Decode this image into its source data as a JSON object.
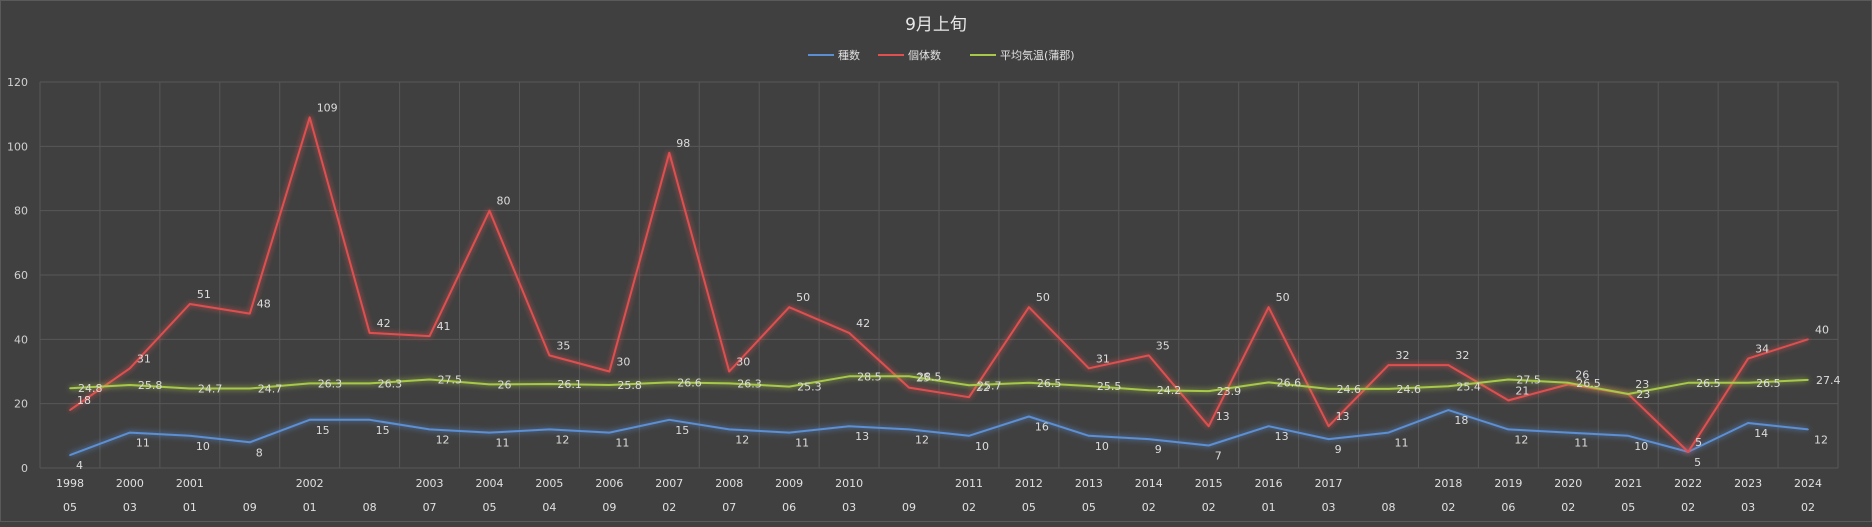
{
  "chart_data": {
    "type": "line",
    "title": "9月上旬",
    "ylim": [
      0,
      120
    ],
    "yticks": [
      0,
      20,
      40,
      60,
      80,
      100,
      120
    ],
    "grid": true,
    "legend_position": "top",
    "categories": [
      {
        "year": "1998",
        "sub": "05"
      },
      {
        "year": "2000",
        "sub": "03"
      },
      {
        "year": "2001",
        "sub": "01"
      },
      {
        "year": "",
        "sub": "09"
      },
      {
        "year": "2002",
        "sub": "01"
      },
      {
        "year": "",
        "sub": "08"
      },
      {
        "year": "2003",
        "sub": "07"
      },
      {
        "year": "2004",
        "sub": "05"
      },
      {
        "year": "2005",
        "sub": "04"
      },
      {
        "year": "2006",
        "sub": "09"
      },
      {
        "year": "2007",
        "sub": "02"
      },
      {
        "year": "2008",
        "sub": "07"
      },
      {
        "year": "2009",
        "sub": "06"
      },
      {
        "year": "2010",
        "sub": "03"
      },
      {
        "year": "",
        "sub": "09"
      },
      {
        "year": "2011",
        "sub": "02"
      },
      {
        "year": "2012",
        "sub": "05"
      },
      {
        "year": "2013",
        "sub": "05"
      },
      {
        "year": "2014",
        "sub": "02"
      },
      {
        "year": "2015",
        "sub": "02"
      },
      {
        "year": "2016",
        "sub": "01"
      },
      {
        "year": "2017",
        "sub": "03"
      },
      {
        "year": "",
        "sub": "08"
      },
      {
        "year": "2018",
        "sub": "02"
      },
      {
        "year": "2019",
        "sub": "06"
      },
      {
        "year": "2020",
        "sub": "02"
      },
      {
        "year": "2021",
        "sub": "05"
      },
      {
        "year": "2022",
        "sub": "02"
      },
      {
        "year": "2023",
        "sub": "03"
      },
      {
        "year": "2024",
        "sub": "02"
      }
    ],
    "series": [
      {
        "name": "種数",
        "color": "#5b8fd4",
        "values": [
          4,
          11,
          10,
          8,
          15,
          15,
          12,
          11,
          12,
          11,
          15,
          12,
          11,
          13,
          12,
          10,
          16,
          10,
          9,
          7,
          13,
          9,
          11,
          18,
          12,
          11,
          10,
          5,
          14,
          12
        ]
      },
      {
        "name": "個体数",
        "color": "#e05050",
        "values": [
          18,
          31,
          51,
          48,
          109,
          42,
          41,
          80,
          35,
          30,
          98,
          30,
          50,
          42,
          25,
          22,
          50,
          31,
          35,
          13,
          50,
          13,
          32,
          32,
          21,
          26,
          23,
          5,
          34,
          40
        ]
      },
      {
        "name": "平均気温(蒲郡)",
        "color": "#a8c84a",
        "values": [
          24.8,
          25.8,
          24.7,
          24.7,
          26.3,
          26.3,
          27.5,
          26,
          26.1,
          25.8,
          26.6,
          26.3,
          25.3,
          28.5,
          28.5,
          25.7,
          26.5,
          25.5,
          24.2,
          23.9,
          26.6,
          24.6,
          24.6,
          25.4,
          27.5,
          26.5,
          23,
          26.5,
          26.5,
          27.4
        ]
      }
    ]
  }
}
